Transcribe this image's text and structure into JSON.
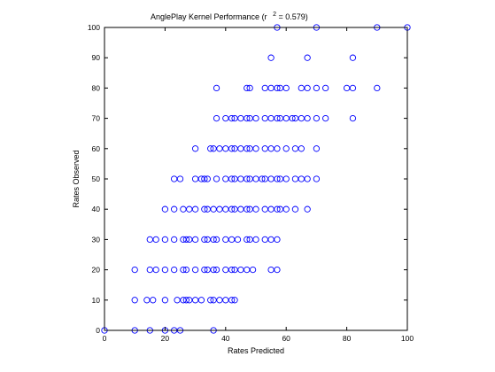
{
  "chart_data": {
    "type": "scatter",
    "title": "AnglePlay Kernel Performance (r",
    "title_sup": "2",
    "title_tail": " = 0.579)",
    "xlabel": "Rates Predicted",
    "ylabel": "Rates Observed",
    "xlim": [
      0,
      100
    ],
    "ylim": [
      0,
      100
    ],
    "xticks": [
      0,
      20,
      40,
      60,
      80,
      100
    ],
    "yticks": [
      0,
      10,
      20,
      30,
      40,
      50,
      60,
      70,
      80,
      90,
      100
    ],
    "grid": false,
    "marker": "open-circle",
    "marker_color": "#0000ff",
    "series": [
      {
        "points": [
          [
            0,
            0
          ],
          [
            10,
            0
          ],
          [
            15,
            0
          ],
          [
            20,
            0
          ],
          [
            23,
            0
          ],
          [
            25,
            0
          ],
          [
            36,
            0
          ],
          [
            10,
            10
          ],
          [
            14,
            10
          ],
          [
            16,
            10
          ],
          [
            20,
            10
          ],
          [
            24,
            10
          ],
          [
            26,
            10
          ],
          [
            27,
            10
          ],
          [
            28,
            10
          ],
          [
            30,
            10
          ],
          [
            32,
            10
          ],
          [
            35,
            10
          ],
          [
            36,
            10
          ],
          [
            38,
            10
          ],
          [
            40,
            10
          ],
          [
            42,
            10
          ],
          [
            43,
            10
          ],
          [
            10,
            20
          ],
          [
            15,
            20
          ],
          [
            17,
            20
          ],
          [
            20,
            20
          ],
          [
            23,
            20
          ],
          [
            26,
            20
          ],
          [
            27,
            20
          ],
          [
            30,
            20
          ],
          [
            33,
            20
          ],
          [
            34,
            20
          ],
          [
            36,
            20
          ],
          [
            37,
            20
          ],
          [
            40,
            20
          ],
          [
            42,
            20
          ],
          [
            43,
            20
          ],
          [
            45,
            20
          ],
          [
            47,
            20
          ],
          [
            49,
            20
          ],
          [
            55,
            20
          ],
          [
            57,
            20
          ],
          [
            15,
            30
          ],
          [
            17,
            30
          ],
          [
            20,
            30
          ],
          [
            23,
            30
          ],
          [
            26,
            30
          ],
          [
            27,
            30
          ],
          [
            28,
            30
          ],
          [
            30,
            30
          ],
          [
            33,
            30
          ],
          [
            34,
            30
          ],
          [
            36,
            30
          ],
          [
            37,
            30
          ],
          [
            40,
            30
          ],
          [
            42,
            30
          ],
          [
            44,
            30
          ],
          [
            47,
            30
          ],
          [
            48,
            30
          ],
          [
            50,
            30
          ],
          [
            53,
            30
          ],
          [
            55,
            30
          ],
          [
            57,
            30
          ],
          [
            20,
            40
          ],
          [
            23,
            40
          ],
          [
            26,
            40
          ],
          [
            28,
            40
          ],
          [
            30,
            40
          ],
          [
            33,
            40
          ],
          [
            34,
            40
          ],
          [
            36,
            40
          ],
          [
            38,
            40
          ],
          [
            40,
            40
          ],
          [
            42,
            40
          ],
          [
            43,
            40
          ],
          [
            45,
            40
          ],
          [
            47,
            40
          ],
          [
            48,
            40
          ],
          [
            50,
            40
          ],
          [
            53,
            40
          ],
          [
            55,
            40
          ],
          [
            57,
            40
          ],
          [
            58,
            40
          ],
          [
            60,
            40
          ],
          [
            63,
            40
          ],
          [
            67,
            40
          ],
          [
            23,
            50
          ],
          [
            25,
            50
          ],
          [
            30,
            50
          ],
          [
            32,
            50
          ],
          [
            33,
            50
          ],
          [
            34,
            50
          ],
          [
            37,
            50
          ],
          [
            40,
            50
          ],
          [
            42,
            50
          ],
          [
            43,
            50
          ],
          [
            45,
            50
          ],
          [
            47,
            50
          ],
          [
            48,
            50
          ],
          [
            50,
            50
          ],
          [
            52,
            50
          ],
          [
            53,
            50
          ],
          [
            55,
            50
          ],
          [
            57,
            50
          ],
          [
            58,
            50
          ],
          [
            60,
            50
          ],
          [
            63,
            50
          ],
          [
            65,
            50
          ],
          [
            67,
            50
          ],
          [
            70,
            50
          ],
          [
            30,
            60
          ],
          [
            35,
            60
          ],
          [
            36,
            60
          ],
          [
            38,
            60
          ],
          [
            40,
            60
          ],
          [
            42,
            60
          ],
          [
            43,
            60
          ],
          [
            45,
            60
          ],
          [
            47,
            60
          ],
          [
            48,
            60
          ],
          [
            50,
            60
          ],
          [
            53,
            60
          ],
          [
            55,
            60
          ],
          [
            57,
            60
          ],
          [
            60,
            60
          ],
          [
            63,
            60
          ],
          [
            65,
            60
          ],
          [
            70,
            60
          ],
          [
            37,
            70
          ],
          [
            40,
            70
          ],
          [
            42,
            70
          ],
          [
            43,
            70
          ],
          [
            45,
            70
          ],
          [
            47,
            70
          ],
          [
            48,
            70
          ],
          [
            50,
            70
          ],
          [
            53,
            70
          ],
          [
            55,
            70
          ],
          [
            57,
            70
          ],
          [
            58,
            70
          ],
          [
            60,
            70
          ],
          [
            62,
            70
          ],
          [
            63,
            70
          ],
          [
            65,
            70
          ],
          [
            67,
            70
          ],
          [
            70,
            70
          ],
          [
            73,
            70
          ],
          [
            82,
            70
          ],
          [
            37,
            80
          ],
          [
            47,
            80
          ],
          [
            48,
            80
          ],
          [
            53,
            80
          ],
          [
            55,
            80
          ],
          [
            57,
            80
          ],
          [
            58,
            80
          ],
          [
            60,
            80
          ],
          [
            65,
            80
          ],
          [
            67,
            80
          ],
          [
            70,
            80
          ],
          [
            73,
            80
          ],
          [
            80,
            80
          ],
          [
            82,
            80
          ],
          [
            90,
            80
          ],
          [
            55,
            90
          ],
          [
            67,
            90
          ],
          [
            82,
            90
          ],
          [
            57,
            100
          ],
          [
            70,
            100
          ],
          [
            90,
            100
          ],
          [
            100,
            100
          ]
        ]
      }
    ]
  }
}
